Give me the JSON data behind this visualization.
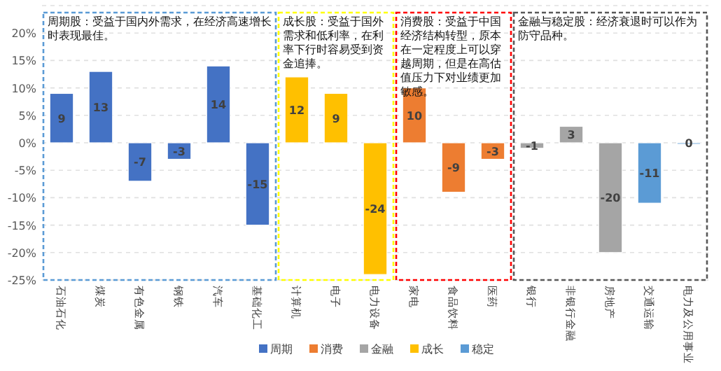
{
  "chart_data": {
    "type": "bar",
    "stacked": true,
    "data_labels": true,
    "legend": "bottom",
    "grid": "y",
    "categories": [
      "石油石化",
      "煤炭",
      "有色金属",
      "钢铁",
      "汽车",
      "基础化工",
      "计算机",
      "电子",
      "电力设备",
      "家电",
      "食品饮料",
      "医药",
      "银行",
      "非银行金融",
      "房地产",
      "交通运输",
      "电力及公用事业"
    ],
    "series": [
      {
        "name": "周期",
        "color": "#4472c4",
        "values": [
          9,
          13,
          -7,
          -3,
          14,
          -15,
          null,
          null,
          null,
          null,
          null,
          null,
          null,
          null,
          null,
          null,
          null
        ]
      },
      {
        "name": "消费",
        "color": "#ed7d31",
        "values": [
          null,
          null,
          null,
          null,
          null,
          null,
          null,
          null,
          null,
          10,
          -9,
          -3,
          null,
          null,
          null,
          null,
          null
        ]
      },
      {
        "name": "金融",
        "color": "#a5a5a5",
        "values": [
          null,
          null,
          null,
          null,
          null,
          null,
          null,
          null,
          null,
          null,
          null,
          null,
          -1,
          3,
          -20,
          null,
          null
        ]
      },
      {
        "name": "成长",
        "color": "#ffc000",
        "values": [
          null,
          null,
          null,
          null,
          null,
          null,
          12,
          9,
          -24,
          null,
          null,
          null,
          null,
          null,
          null,
          null,
          null
        ]
      },
      {
        "name": "稳定",
        "color": "#5b9bd5",
        "values": [
          null,
          null,
          null,
          null,
          null,
          null,
          null,
          null,
          null,
          null,
          null,
          null,
          null,
          null,
          null,
          -11,
          0
        ]
      }
    ],
    "ylim": [
      -25,
      25
    ],
    "yticks": [
      {
        "value": -25,
        "label": "-25%"
      },
      {
        "value": -20,
        "label": "-20%"
      },
      {
        "value": -15,
        "label": "-15%"
      },
      {
        "value": -10,
        "label": "-10%"
      },
      {
        "value": -5,
        "label": "-5%"
      },
      {
        "value": 0,
        "label": "0%"
      },
      {
        "value": 5,
        "label": "5%"
      },
      {
        "value": 10,
        "label": "10%"
      },
      {
        "value": 15,
        "label": "15%"
      },
      {
        "value": 20,
        "label": "20%"
      },
      {
        "value": 25,
        "label": null
      }
    ],
    "annotations": [
      "周期股：受益于国内外需求，在经济高速增长时表现最佳。",
      "成长股：受益于国外需求和低利率，在利率下行时容易受到资金追捧。",
      "消费股：受益于中国经济结构转型，原本在一定程度上可以穿越周期，但是在高估值压力下对业绩更加敏感。",
      "金融与稳定股：经济衰退时可以作为防守品种。"
    ]
  }
}
